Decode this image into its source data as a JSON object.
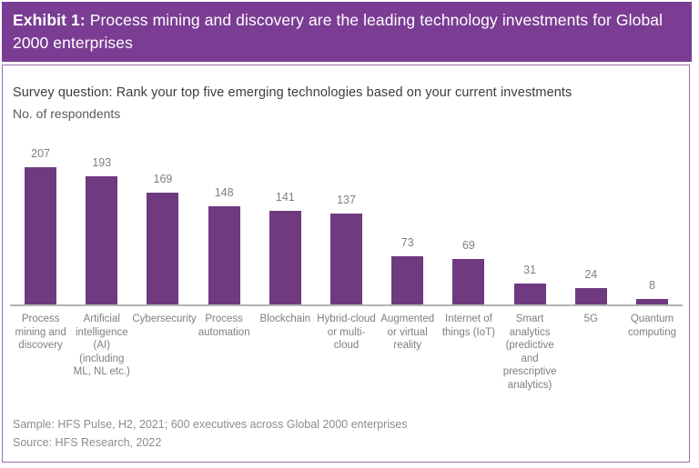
{
  "header": {
    "prefix": "Exhibit 1:",
    "title": "Process mining and discovery are the leading technology investments for Global 2000 enterprises"
  },
  "survey": {
    "question": "Survey question: Rank your top five emerging technologies based on your current investments",
    "unit_label": "No. of respondents"
  },
  "chart_data": {
    "type": "bar",
    "categories": [
      "Process mining and discovery",
      "Artificial intelligence (AI) (including ML, NL etc.)",
      "Cybersecurity",
      "Process automation",
      "Blockchain",
      "Hybrid-cloud or multi-cloud",
      "Augmented or virtual reality",
      "Internet of things (IoT)",
      "Smart analytics (predictive and prescriptive analytics)",
      "5G",
      "Quantum computing"
    ],
    "values": [
      207,
      193,
      169,
      148,
      141,
      137,
      73,
      69,
      31,
      24,
      8
    ],
    "title": "",
    "xlabel": "",
    "ylabel": "No. of respondents",
    "ylim": [
      0,
      220
    ],
    "grid": false,
    "legend": false,
    "value_labels": true,
    "bar_color": "#6f3a80"
  },
  "footer": {
    "sample": "Sample: HFS Pulse, H2, 2021; 600 executives across Global 2000 enterprises",
    "source": "Source: HFS Research, 2022"
  },
  "colors": {
    "header_bg": "#7a3d93",
    "header_text": "#ffffff",
    "bar": "#6f3a80",
    "content_border": "#9b6fb0",
    "axis_line": "#b3b3b3",
    "label_gray": "#7f7f7f",
    "footer_gray": "#8c8c8c"
  }
}
